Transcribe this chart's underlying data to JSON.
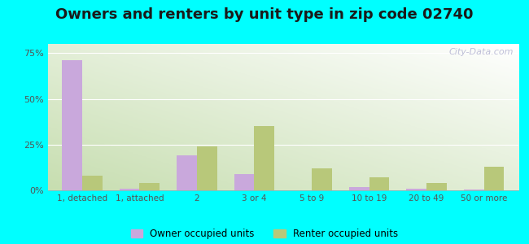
{
  "title": "Owners and renters by unit type in zip code 02740",
  "categories": [
    "1, detached",
    "1, attached",
    "2",
    "3 or 4",
    "5 to 9",
    "10 to 19",
    "20 to 49",
    "50 or more"
  ],
  "owner_values": [
    71,
    1,
    19,
    9,
    0,
    2,
    1,
    0.5
  ],
  "renter_values": [
    8,
    4,
    24,
    35,
    12,
    7,
    4,
    13
  ],
  "owner_color": "#c9a8dc",
  "renter_color": "#b8c87a",
  "ylim": [
    0,
    80
  ],
  "yticks": [
    0,
    25,
    50,
    75
  ],
  "ytick_labels": [
    "0%",
    "25%",
    "50%",
    "75%"
  ],
  "background_fig": "#00ffff",
  "title_fontsize": 13,
  "legend_owner": "Owner occupied units",
  "legend_renter": "Renter occupied units",
  "watermark": "City-Data.com"
}
